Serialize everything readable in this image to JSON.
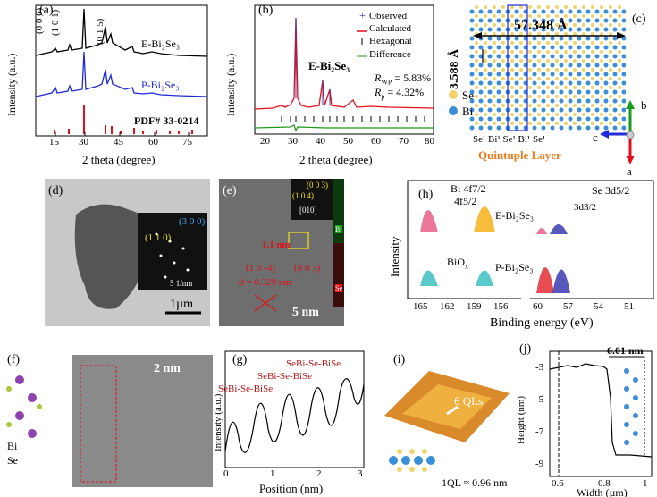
{
  "colors": {
    "black": "#000000",
    "blue": "#1f2bd6",
    "red": "#e0101a",
    "green": "#1a9a1a",
    "orange": "#f07a1a",
    "pink": "#e7608a",
    "yellow": "#f4b21a",
    "teal": "#3cc0c0",
    "darkblue": "#3b3bb0"
  },
  "panel_a": {
    "label": "(a)",
    "peak_labels": [
      "(0 0 6)",
      "(1 0 1)",
      "(0 1 5)"
    ],
    "series_labels": [
      "E-Bi₂Se₃",
      "P-Bi₂Se₃"
    ],
    "pdf": "PDF# 33-0214",
    "ylabel": "Intensity (a.u.)",
    "xlabel": "2 theta (degree)",
    "xticks": [
      "15",
      "30",
      "45",
      "60",
      "75"
    ],
    "chart_data": {
      "type": "line",
      "xlim": [
        10,
        80
      ],
      "series": [
        {
          "name": "E-Bi₂Se₃"
        },
        {
          "name": "P-Bi₂Se₃"
        }
      ],
      "reference_peaks": [
        18.6,
        25.2,
        29.4,
        40.3,
        43.7,
        47.7,
        53.5,
        57.1,
        62.1,
        68.1,
        71.2,
        75.1
      ]
    }
  },
  "panel_b": {
    "label": "(b)",
    "title": "E-Bi₂Se₃",
    "legend": [
      "Observed",
      "Calculated",
      "Hexagonal",
      "Difference"
    ],
    "rwp": "R",
    "rwp_sub": "WP",
    "rwp_val": " = 5.83%",
    "rp": "R",
    "rp_sub": "p",
    "rp_val": " = 4.32%",
    "ylabel": "Intensity (a.u.)",
    "xlabel": "2 theta (degree)",
    "xticks": [
      "20",
      "30",
      "40",
      "50",
      "60",
      "70",
      "80"
    ],
    "chart_data": {
      "type": "line",
      "xlim": [
        15,
        80
      ]
    }
  },
  "panel_c": {
    "label": "(c)",
    "dim1": "57.348 Å",
    "dim2": "3.588 Å",
    "legend": [
      "Se",
      "Bi"
    ],
    "atoms": "Se¹ Bi¹ Se¹ Bi¹ Se¹",
    "ql": "Quintuple Layer",
    "axes": [
      "b",
      "c",
      "a"
    ]
  },
  "panel_d": {
    "label": "(d)",
    "indices": [
      "(1 1 0)",
      "(3 0 0)"
    ],
    "scale_inset": "5 1/nm",
    "scale": "1µm"
  },
  "panel_e": {
    "label": "(e)",
    "indices": [
      "(0 0 3)",
      "(1 0 4)",
      "[010]"
    ],
    "d": "1.1 nm",
    "plane1": "(1 0 -4)",
    "plane2": "(0 0 3)",
    "dspacing": "d = 0.329 nm",
    "scale": "5 nm",
    "map_bi": "Bi",
    "map_se": "Se"
  },
  "panel_h": {
    "label": "(h)",
    "bi": "Bi 4f7/2",
    "bi2": "4f5/2",
    "se": "Se 3d5/2",
    "se2": "3d3/2",
    "e": "E-Bi₂Se₃",
    "p": "P-Bi₂Se₃",
    "biox": "BiO",
    "ylabel": "Intensity",
    "xlabel": "Binding energy (eV)",
    "xticks": [
      "165",
      "162",
      "159",
      "156",
      "60",
      "57",
      "54",
      "51"
    ]
  },
  "panel_f": {
    "label": "(f)",
    "scale": "2 nm",
    "bi": "Bi",
    "se": "Se"
  },
  "panel_g": {
    "label": "(g)",
    "annot": [
      "SeBi-Se-BiSe",
      "SeBi-Se-BiSe",
      "SeBi-Se-BiSe"
    ],
    "ylabel": "Intensity (a.u.)",
    "xlabel": "Position (nm)",
    "xticks": [
      "0",
      "1",
      "2",
      "3"
    ]
  },
  "panel_i": {
    "label": "(i)",
    "ql": "6 QLs",
    "qlnote": "1QL ≈ 0.96 nm"
  },
  "panel_j": {
    "label": "(j)",
    "thick": "6.01 nm",
    "ylabel": "Height (nm)",
    "xlabel": "Width (µm)",
    "yticks": [
      "-3",
      "-5",
      "-7",
      "-9"
    ],
    "xticks": [
      "0.6",
      "0.8",
      "1"
    ],
    "chart_data": {
      "type": "line",
      "xlim": [
        0.55,
        1.02
      ],
      "ylim": [
        -9.5,
        -2.5
      ]
    }
  }
}
